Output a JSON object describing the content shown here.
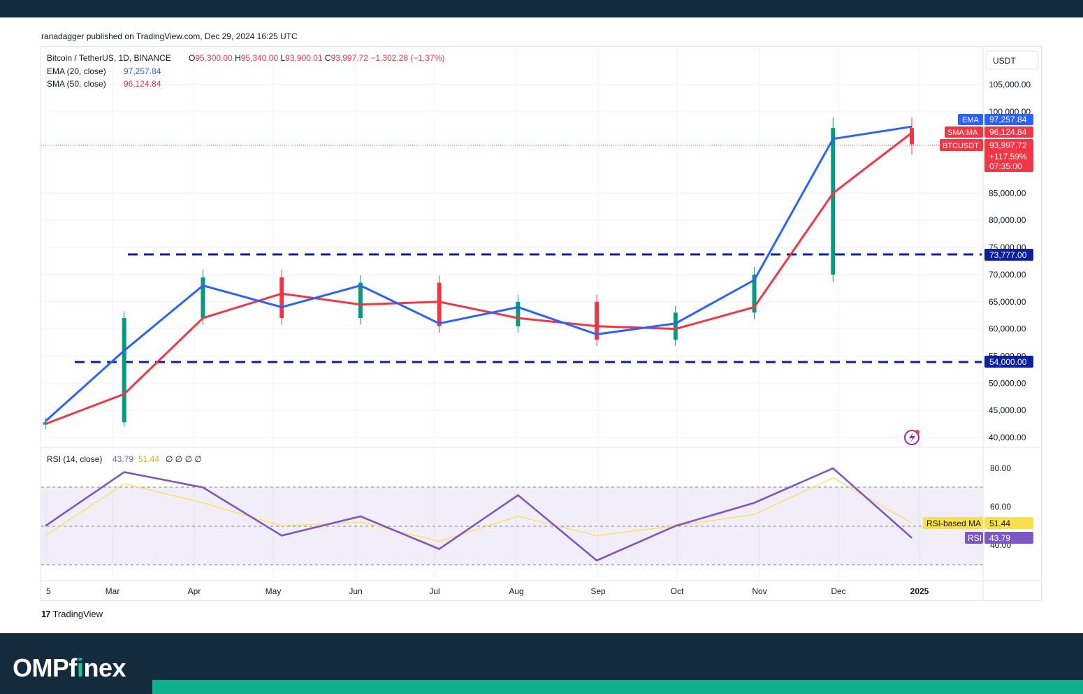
{
  "header": {
    "published_text": "ranadagger published on TradingView.com, Dec 29, 2024 16:25 UTC"
  },
  "legend": {
    "symbol": "Bitcoin / TetherUS, 1D, BINANCE",
    "ohlc": {
      "o_label": "O",
      "o": "95,300.00",
      "h_label": "H",
      "h": "95,340.00",
      "l_label": "L",
      "l": "93,900.01",
      "c_label": "C",
      "c": "93,997.72",
      "change": "−1,302.28 (−1.37%)"
    },
    "ema_label": "EMA (20, close)",
    "ema_value": "97,257.84",
    "sma_label": "SMA (50, close)",
    "sma_value": "96,124.84",
    "rsi_label": "RSI (14, close)",
    "rsi_value": "43.79",
    "rsi_ma_value": "51.44",
    "rsi_extras": "∅ ∅ ∅ ∅"
  },
  "price_axis": {
    "currency": "USDT",
    "ticks": [
      "105,000.00",
      "100,000.00",
      "85,000.00",
      "80,000.00",
      "75,000.00",
      "70,000.00",
      "65,000.00",
      "60,000.00",
      "55,000.00",
      "50,000.00",
      "45,000.00",
      "40,000.00"
    ],
    "tick_values": [
      105000,
      100000,
      85000,
      80000,
      75000,
      70000,
      65000,
      60000,
      55000,
      50000,
      45000,
      40000
    ]
  },
  "tags": {
    "ema": {
      "label": "EMA",
      "value": "97,257.84",
      "color": "#2962ff"
    },
    "sma": {
      "label": "SMA:MA",
      "value": "96,124.84",
      "color": "#f23645"
    },
    "btc": {
      "label": "BTCUSDT",
      "value": "93,997.72",
      "pct": "+117.59%",
      "time": "07:35:00",
      "color": "#f23645"
    },
    "resistance": {
      "value": "73,777.00",
      "color": "#0c1f9c"
    },
    "support": {
      "value": "54,000.00",
      "color": "#0c1f9c"
    },
    "rsi_ma": {
      "label": "RSI-based MA",
      "value": "51.44",
      "color": "#f9e04b"
    },
    "rsi": {
      "label": "RSI",
      "value": "43.79",
      "color": "#7e57c2"
    }
  },
  "rsi_axis": {
    "ticks": [
      "80.00",
      "60.00",
      "40.00"
    ],
    "tick_values": [
      80,
      60,
      40
    ]
  },
  "time_axis": {
    "labels": [
      "5",
      "Mar",
      "Apr",
      "May",
      "Jun",
      "Jul",
      "Aug",
      "Sep",
      "Oct",
      "Nov",
      "Dec",
      "2025"
    ]
  },
  "chart_data": {
    "type": "line",
    "title": "Bitcoin / TetherUS, 1D, BINANCE",
    "x": [
      "Feb 5",
      "Mar",
      "Apr",
      "May",
      "Jun",
      "Jul",
      "Aug",
      "Sep",
      "Oct",
      "Nov",
      "Dec",
      "Dec 29"
    ],
    "price_ylim": [
      40000,
      108000
    ],
    "series": [
      {
        "name": "BTCUSDT",
        "values": [
          42800,
          62000,
          69500,
          62000,
          68500,
          60500,
          65000,
          58000,
          63000,
          70000,
          97000,
          93997.72
        ]
      },
      {
        "name": "EMA (20, close)",
        "values": [
          43000,
          56000,
          68000,
          64000,
          68000,
          61000,
          64000,
          59000,
          61000,
          69000,
          95000,
          97257.84
        ]
      },
      {
        "name": "SMA (50, close)",
        "values": [
          42500,
          48000,
          62000,
          66500,
          64500,
          65000,
          62000,
          60500,
          60000,
          64000,
          85000,
          96124.84
        ]
      }
    ],
    "levels": [
      73777,
      54000
    ],
    "rsi": {
      "ylim": [
        25,
        90
      ],
      "bands": [
        70,
        50,
        30
      ],
      "series": [
        {
          "name": "RSI",
          "values": [
            50,
            78,
            70,
            45,
            55,
            38,
            66,
            32,
            50,
            62,
            80,
            43.79
          ]
        },
        {
          "name": "RSI-based MA",
          "values": [
            45,
            72,
            62,
            50,
            52,
            42,
            55,
            45,
            50,
            56,
            75,
            51.44
          ]
        }
      ]
    },
    "grid": true
  },
  "footer": {
    "brand_a": "OMP",
    "brand_b": "f",
    "brand_c": "i",
    "brand_d": "nex",
    "watermark": "TradingView"
  }
}
